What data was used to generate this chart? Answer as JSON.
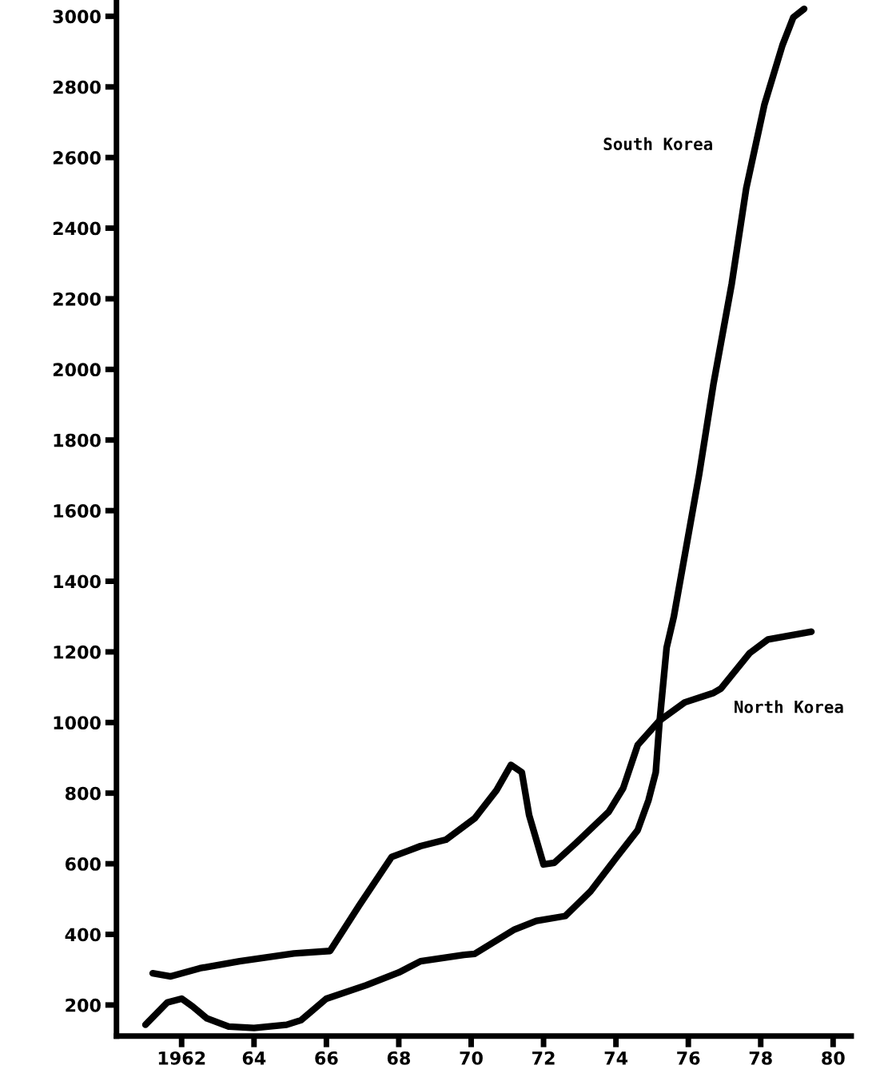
{
  "chart_data": {
    "type": "line",
    "xlim": [
      1960.2,
      1980.5
    ],
    "ylim": [
      112,
      3040
    ],
    "xticks": [
      {
        "value": 1962,
        "label": "1962"
      },
      {
        "value": 1964,
        "label": "64"
      },
      {
        "value": 1966,
        "label": "66"
      },
      {
        "value": 1968,
        "label": "68"
      },
      {
        "value": 1970,
        "label": "70"
      },
      {
        "value": 1972,
        "label": "72"
      },
      {
        "value": 1974,
        "label": "74"
      },
      {
        "value": 1976,
        "label": "76"
      },
      {
        "value": 1978,
        "label": "78"
      },
      {
        "value": 1980,
        "label": "80"
      }
    ],
    "yticks": [
      200,
      400,
      600,
      800,
      1000,
      1200,
      1400,
      1600,
      1800,
      2000,
      2200,
      2400,
      2600,
      2800,
      3000
    ],
    "grid": false,
    "legend": false,
    "marker": "none",
    "line_style": "solid",
    "series": [
      {
        "name": "South Korea",
        "color": "#000000",
        "x": [
          1961.0,
          1961.6,
          1962.0,
          1962.3,
          1962.7,
          1963.3,
          1964.0,
          1964.9,
          1965.3,
          1966.0,
          1967.1,
          1968.0,
          1968.6,
          1969.8,
          1970.1,
          1971.2,
          1971.8,
          1972.6,
          1973.3,
          1974.0,
          1974.6,
          1974.9,
          1975.1,
          1975.2,
          1975.4,
          1975.6,
          1976.3,
          1976.7,
          1977.2,
          1977.6,
          1978.1,
          1978.6,
          1978.9,
          1979.2
        ],
        "values": [
          144,
          207,
          218,
          196,
          162,
          139,
          135,
          144,
          157,
          218,
          256,
          292,
          324,
          342,
          345,
          414,
          438,
          452,
          522,
          616,
          695,
          780,
          859,
          996,
          1212,
          1300,
          1703,
          1962,
          2243,
          2513,
          2749,
          2918,
          2997,
          3021
        ]
      },
      {
        "name": "North Korea",
        "color": "#000000",
        "x": [
          1961.2,
          1961.7,
          1962.5,
          1963.6,
          1965.1,
          1966.1,
          1966.9,
          1967.8,
          1968.6,
          1969.3,
          1970.1,
          1970.7,
          1971.1,
          1971.4,
          1971.6,
          1971.8,
          1972.0,
          1972.3,
          1972.9,
          1973.8,
          1974.2,
          1974.6,
          1975.2,
          1975.9,
          1976.7,
          1976.9,
          1977.7,
          1978.2,
          1979.4
        ],
        "values": [
          290,
          281,
          304,
          324,
          346,
          353,
          481,
          619,
          650,
          668,
          729,
          808,
          880,
          859,
          738,
          668,
          598,
          603,
          659,
          747,
          814,
          936,
          1005,
          1057,
          1084,
          1096,
          1197,
          1235,
          1257
        ]
      }
    ]
  }
}
